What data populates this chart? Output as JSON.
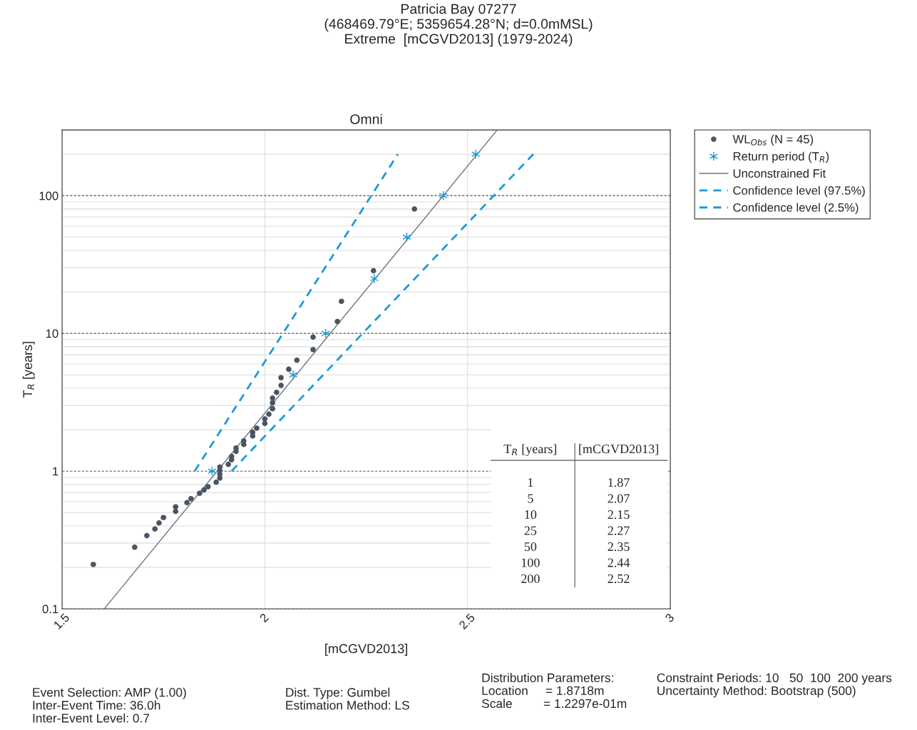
{
  "chart_data": {
    "type": "scatter",
    "title": "Patricia Bay 07277\n(468469.79°E; 5359654.28°N; d=0.0mMSL)\nExtreme  [mCGVD2013] (1979-2024)",
    "subtitle": "Omni",
    "xlabel": "[mCGVD2013]",
    "ylabel": "T$_{R}$ [years]",
    "xlim": [
      1.5,
      3
    ],
    "xticks": [
      1.5,
      2,
      2.5,
      3
    ],
    "ylim": [
      0.1,
      300
    ],
    "yticks": [
      0.1,
      1,
      10,
      100
    ],
    "log": "y",
    "grid": true,
    "legend": "right",
    "series": [
      {
        "name": "WL$_{Obs}$ (N = 45)",
        "marker": "circle",
        "color": "#4a5562",
        "x": [
          1.577,
          1.679,
          1.709,
          1.729,
          1.739,
          1.75,
          1.78,
          1.78,
          1.808,
          1.818,
          1.839,
          1.85,
          1.86,
          1.88,
          1.889,
          1.889,
          1.889,
          1.889,
          1.91,
          1.918,
          1.918,
          1.929,
          1.929,
          1.948,
          1.948,
          1.97,
          1.97,
          1.98,
          2.0,
          2.0,
          2.01,
          2.019,
          2.019,
          2.019,
          2.029,
          2.04,
          2.04,
          2.059,
          2.079,
          2.119,
          2.119,
          2.179,
          2.189,
          2.268,
          2.369
        ],
        "values": [
          0.21,
          0.28,
          0.34,
          0.38,
          0.42,
          0.46,
          0.55,
          0.51,
          0.59,
          0.63,
          0.69,
          0.73,
          0.77,
          0.83,
          0.89,
          0.95,
          1.01,
          1.07,
          1.12,
          1.21,
          1.28,
          1.39,
          1.47,
          1.56,
          1.66,
          1.8,
          1.91,
          2.05,
          2.22,
          2.39,
          2.59,
          2.84,
          3.13,
          3.39,
          3.73,
          4.19,
          4.77,
          5.49,
          6.39,
          7.62,
          9.4,
          12.2,
          17.1,
          28.5,
          80
        ]
      },
      {
        "name": "Return period (T$_{R}$)",
        "marker": "cross",
        "color": "#1a9bd7",
        "x": [
          1.87,
          2.07,
          2.15,
          2.27,
          2.35,
          2.44,
          2.52
        ],
        "values": [
          1,
          5,
          10,
          25,
          50,
          100,
          200
        ]
      },
      {
        "name": "Unconstrained Fit",
        "type": "line",
        "line_style": "solid",
        "color": "#6b7580",
        "x": [
          1.604,
          2.573
        ],
        "values": [
          0.1,
          300
        ]
      },
      {
        "name": "Confidence level (97.5%)",
        "type": "line",
        "line_style": "dashed",
        "color": "#1a9bd7",
        "x": [
          1.827,
          2.328
        ],
        "values": [
          1,
          200
        ]
      },
      {
        "name": "Confidence level (2.5%)",
        "type": "line",
        "line_style": "dashed",
        "color": "#1a9bd7",
        "x": [
          1.918,
          2.662
        ],
        "values": [
          1,
          200
        ]
      }
    ],
    "annotations": [
      "T$_{R}$ [years]",
      "[mCGVD2013]",
      "1",
      "1.87",
      "5",
      "2.07",
      "10",
      "2.15",
      "25",
      "2.27",
      "50",
      "2.35",
      "100",
      "2.44",
      "200",
      "2.52",
      "Event Selection: AMP (1.00)\nInter-Event Time: 36.0h\nInter-Event Level: 0.7",
      "Dist. Type: Gumbel\nEstimation Method: LS",
      "Distribution Parameters:\nLocation     = 1.8718m\nScale         = 1.2297e-01m",
      "Constraint Periods: 10   50  100  200 years\nUncertainty Method: Bootstrap (500)"
    ]
  }
}
